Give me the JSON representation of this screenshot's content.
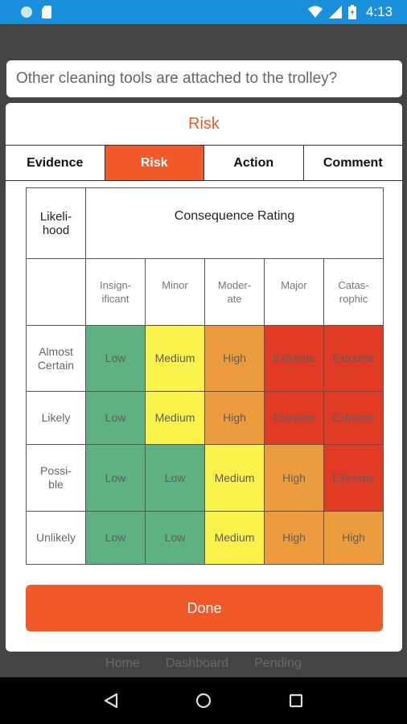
{
  "status_bar": {
    "time": "4:13"
  },
  "background_tabs": [
    "Home",
    "Dashboard",
    "Pending"
  ],
  "question": "Other cleaning tools are attached to the trolley?",
  "modal": {
    "title": "Risk",
    "tabs": [
      "Evidence",
      "Risk",
      "Action",
      "Comment"
    ],
    "active_tab": "Risk"
  },
  "matrix": {
    "likelihood_header": "Likeli-\nhood",
    "consequence_header": "Consequence Rating",
    "columns": [
      "Insign-\nificant",
      "Minor",
      "Moder-\nate",
      "Major",
      "Catas-\nrophic"
    ],
    "rows": [
      {
        "label": "Almost\nCertain",
        "cells": [
          "Low",
          "Medium",
          "High",
          "Extreme",
          "Extreme"
        ]
      },
      {
        "label": "Likely",
        "cells": [
          "Low",
          "Medium",
          "High",
          "Extreme",
          "Extreme"
        ]
      },
      {
        "label": "Possi-\nble",
        "cells": [
          "Low",
          "Low",
          "Medium",
          "High",
          "Extreme"
        ]
      },
      {
        "label": "Unlikely",
        "cells": [
          "Low",
          "Low",
          "Medium",
          "High",
          "High"
        ]
      }
    ]
  },
  "colors": {
    "accent": "#f0592a",
    "Low": "#5eb181",
    "Medium": "#f8f24a",
    "High": "#ec9b3d",
    "Extreme": "#e13b26"
  },
  "done_label": "Done",
  "nav": {
    "back_icon": "back-triangle-icon",
    "home_icon": "home-circle-icon",
    "recents_icon": "recents-square-icon"
  }
}
